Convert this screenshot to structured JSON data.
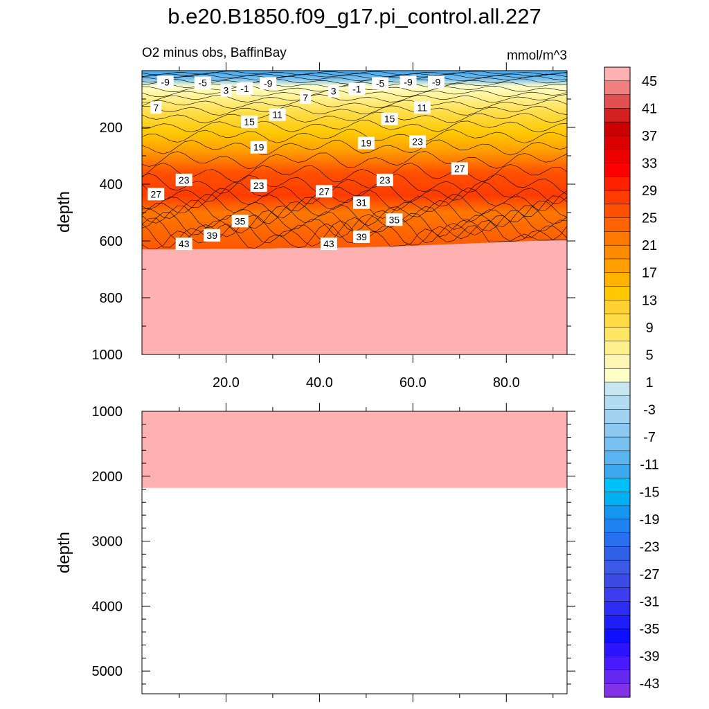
{
  "chart_data": {
    "type": "contour",
    "title": "b.e20.B1850.f09_g17.pi_control.all.227",
    "subtitle_left": "O2 minus obs, BaffinBay",
    "units": "mmol/m^3",
    "ylabel": "depth",
    "x_ticks": [
      "20.0",
      "40.0",
      "60.0",
      "80.0"
    ],
    "x_tick_values": [
      20,
      40,
      60,
      80
    ],
    "xlim": [
      2,
      93
    ],
    "top_panel": {
      "ylim": [
        0,
        1000
      ],
      "y_ticks": [
        "200",
        "400",
        "600",
        "800",
        "1000"
      ],
      "y_tick_values": [
        200,
        400,
        600,
        800,
        1000
      ],
      "bottom_depth_profile": [
        630,
        630,
        628,
        628,
        625,
        625,
        622,
        620,
        615,
        610,
        605,
        600,
        598
      ],
      "contour_labels": [
        {
          "text": "-9",
          "x": 7,
          "y": 40
        },
        {
          "text": "-5",
          "x": 15,
          "y": 43
        },
        {
          "text": "3",
          "x": 20,
          "y": 70
        },
        {
          "text": "-1",
          "x": 24,
          "y": 63
        },
        {
          "text": "-9",
          "x": 29,
          "y": 45
        },
        {
          "text": "7",
          "x": 37,
          "y": 95
        },
        {
          "text": "3",
          "x": 43,
          "y": 72
        },
        {
          "text": "-1",
          "x": 48,
          "y": 65
        },
        {
          "text": "-5",
          "x": 53,
          "y": 45
        },
        {
          "text": "-9",
          "x": 59,
          "y": 40
        },
        {
          "text": "-9",
          "x": 65,
          "y": 40
        },
        {
          "text": "7",
          "x": 5,
          "y": 130
        },
        {
          "text": "11",
          "x": 31,
          "y": 155
        },
        {
          "text": "11",
          "x": 62,
          "y": 130
        },
        {
          "text": "15",
          "x": 25,
          "y": 180
        },
        {
          "text": "15",
          "x": 55,
          "y": 170
        },
        {
          "text": "19",
          "x": 27,
          "y": 270
        },
        {
          "text": "19",
          "x": 50,
          "y": 255
        },
        {
          "text": "23",
          "x": 61,
          "y": 250
        },
        {
          "text": "23",
          "x": 11,
          "y": 385
        },
        {
          "text": "23",
          "x": 27,
          "y": 405
        },
        {
          "text": "23",
          "x": 54,
          "y": 385
        },
        {
          "text": "27",
          "x": 5,
          "y": 435
        },
        {
          "text": "27",
          "x": 41,
          "y": 425
        },
        {
          "text": "27",
          "x": 70,
          "y": 345
        },
        {
          "text": "31",
          "x": 49,
          "y": 465
        },
        {
          "text": "35",
          "x": 23,
          "y": 530
        },
        {
          "text": "35",
          "x": 56,
          "y": 525
        },
        {
          "text": "39",
          "x": 17,
          "y": 580
        },
        {
          "text": "39",
          "x": 49,
          "y": 585
        },
        {
          "text": "43",
          "x": 11,
          "y": 610
        },
        {
          "text": "43",
          "x": 42,
          "y": 610
        }
      ]
    },
    "bottom_panel": {
      "ylim": [
        1000,
        5350
      ],
      "y_ticks": [
        "1000",
        "2000",
        "3000",
        "4000",
        "5000"
      ],
      "y_tick_values": [
        1000,
        2000,
        3000,
        4000,
        5000
      ],
      "filled_to_depth": 2180
    },
    "colorbar": {
      "levels": [
        45,
        43,
        41,
        39,
        37,
        35,
        33,
        31,
        29,
        27,
        25,
        23,
        21,
        19,
        17,
        15,
        13,
        11,
        9,
        7,
        5,
        3,
        1,
        -1,
        -3,
        -5,
        -7,
        -9,
        -11,
        -13,
        -15,
        -17,
        -19,
        -21,
        -23,
        -25,
        -27,
        -29,
        -31,
        -33,
        -35,
        -37,
        -39,
        -41,
        -43,
        -45
      ],
      "labels": [
        "45",
        "41",
        "37",
        "33",
        "29",
        "25",
        "21",
        "17",
        "13",
        "9",
        "5",
        "1",
        "-3",
        "-7",
        "-11",
        "-15",
        "-19",
        "-23",
        "-27",
        "-31",
        "-35",
        "-39",
        "-43"
      ],
      "colors": [
        "#ffb0b0",
        "#f08080",
        "#e05050",
        "#d42020",
        "#cc0000",
        "#dd0000",
        "#ee0000",
        "#ff0000",
        "#ff2000",
        "#ff3c00",
        "#ff5000",
        "#ff6400",
        "#ff7800",
        "#ff8c00",
        "#ffa000",
        "#ffb400",
        "#ffc800",
        "#ffd232",
        "#ffdc46",
        "#ffe664",
        "#fff08c",
        "#fff5b4",
        "#ffffc8",
        "#c8e6f0",
        "#b4dcf0",
        "#a0d2f0",
        "#8cc8f0",
        "#78c0f0",
        "#5ab4f0",
        "#3ca8f0",
        "#00c0f8",
        "#00b0f0",
        "#1496f0",
        "#1e82f0",
        "#2870f0",
        "#3060e6",
        "#3c5ae6",
        "#3c4be6",
        "#3c3cf0",
        "#2d2df5",
        "#1e1efa",
        "#0f0fff",
        "#2c14ff",
        "#4a1aff",
        "#6428f0",
        "#8232e6"
      ]
    }
  }
}
